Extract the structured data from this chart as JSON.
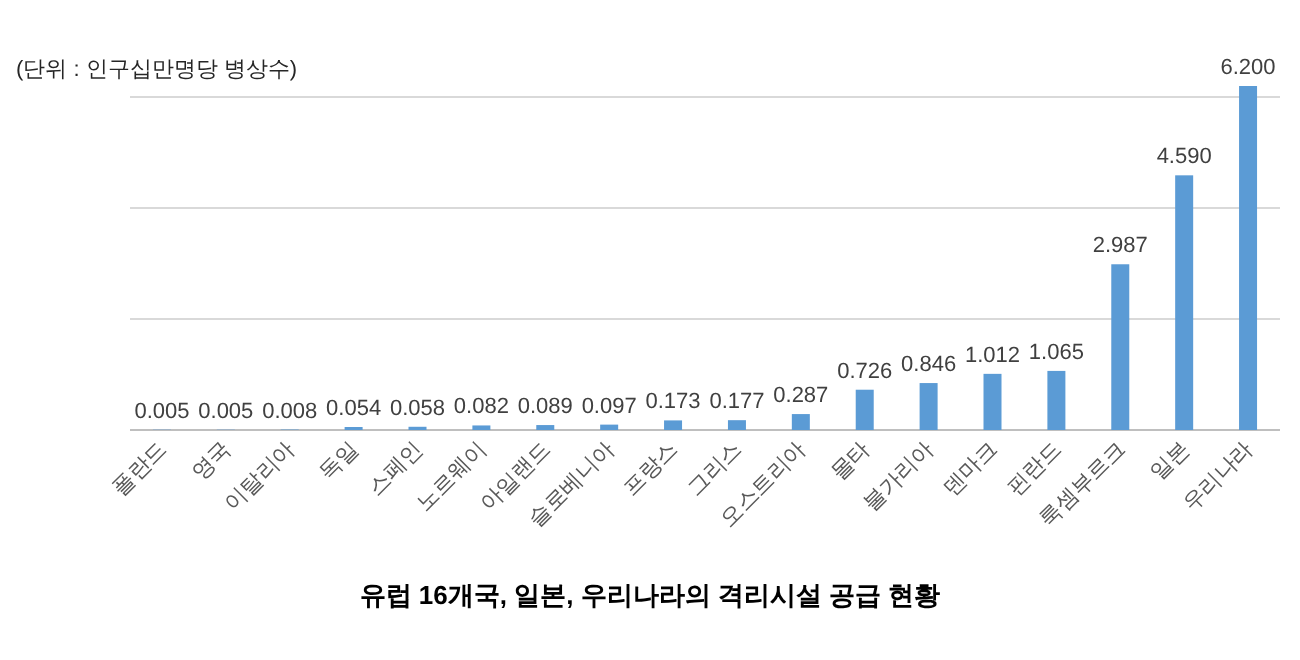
{
  "chart_data": {
    "type": "bar",
    "title": "유럽 16개국, 일본, 우리나라의 격리시설 공급 현황",
    "annotations": [
      "(단위 : 인구십만명당 병상수)"
    ],
    "categories": [
      "폴란드",
      "영국",
      "이탈리아",
      "독일",
      "스페인",
      "노르웨이",
      "아일랜드",
      "슬로베니아",
      "프랑스",
      "그리스",
      "오스트리아",
      "몰타",
      "불가리아",
      "덴마크",
      "핀란드",
      "룩셈부르크",
      "일본",
      "우리나라"
    ],
    "values": [
      0.005,
      0.005,
      0.008,
      0.054,
      0.058,
      0.082,
      0.089,
      0.097,
      0.173,
      0.177,
      0.287,
      0.726,
      0.846,
      1.012,
      1.065,
      2.987,
      4.59,
      6.2
    ],
    "value_labels": [
      "0.005",
      "0.005",
      "0.008",
      "0.054",
      "0.058",
      "0.082",
      "0.089",
      "0.097",
      "0.173",
      "0.177",
      "0.287",
      "0.726",
      "0.846",
      "1.012",
      "1.065",
      "2.987",
      "4.590",
      "6.200"
    ],
    "color": "#5b9bd5",
    "yticks": [
      {
        "value": 0,
        "label": null
      },
      {
        "value": 2,
        "label": null
      },
      {
        "value": 4,
        "label": null
      },
      {
        "value": 6,
        "label": null
      }
    ],
    "grid": "y"
  }
}
